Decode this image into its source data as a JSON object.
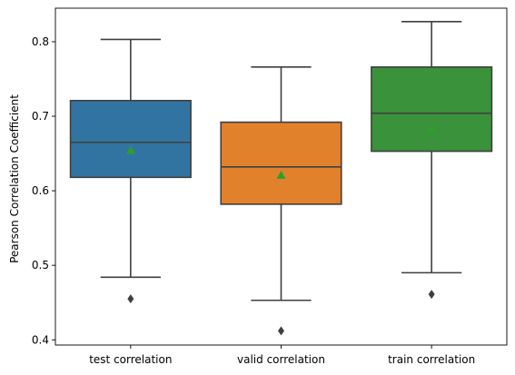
{
  "chart_data": {
    "type": "box",
    "title": "",
    "xlabel": "",
    "ylabel": "Pearson Correlation Coefficient",
    "ylim": [
      0.393,
      0.845
    ],
    "yticks": [
      0.4,
      0.5,
      0.6,
      0.7,
      0.8
    ],
    "ytick_labels": [
      "0.4",
      "0.5",
      "0.6",
      "0.7",
      "0.8"
    ],
    "grid": false,
    "legend": "none",
    "categories": [
      "test correlation",
      "valid correlation",
      "train correlation"
    ],
    "boxes": [
      {
        "category": "test correlation",
        "color": "#3274a1",
        "whisker_low": 0.484,
        "q1": 0.618,
        "median": 0.665,
        "q3": 0.721,
        "whisker_high": 0.803,
        "mean": 0.654,
        "outliers": [
          0.455
        ]
      },
      {
        "category": "valid correlation",
        "color": "#e1812c",
        "whisker_low": 0.453,
        "q1": 0.582,
        "median": 0.632,
        "q3": 0.692,
        "whisker_high": 0.766,
        "mean": 0.621,
        "outliers": [
          0.412
        ]
      },
      {
        "category": "train correlation",
        "color": "#3a923a",
        "whisker_low": 0.49,
        "q1": 0.653,
        "median": 0.704,
        "q3": 0.766,
        "whisker_high": 0.827,
        "mean": 0.683,
        "outliers": [
          0.461
        ]
      }
    ],
    "line_color": "#3f3f3f",
    "mean_marker_color": "#2ca02c"
  }
}
